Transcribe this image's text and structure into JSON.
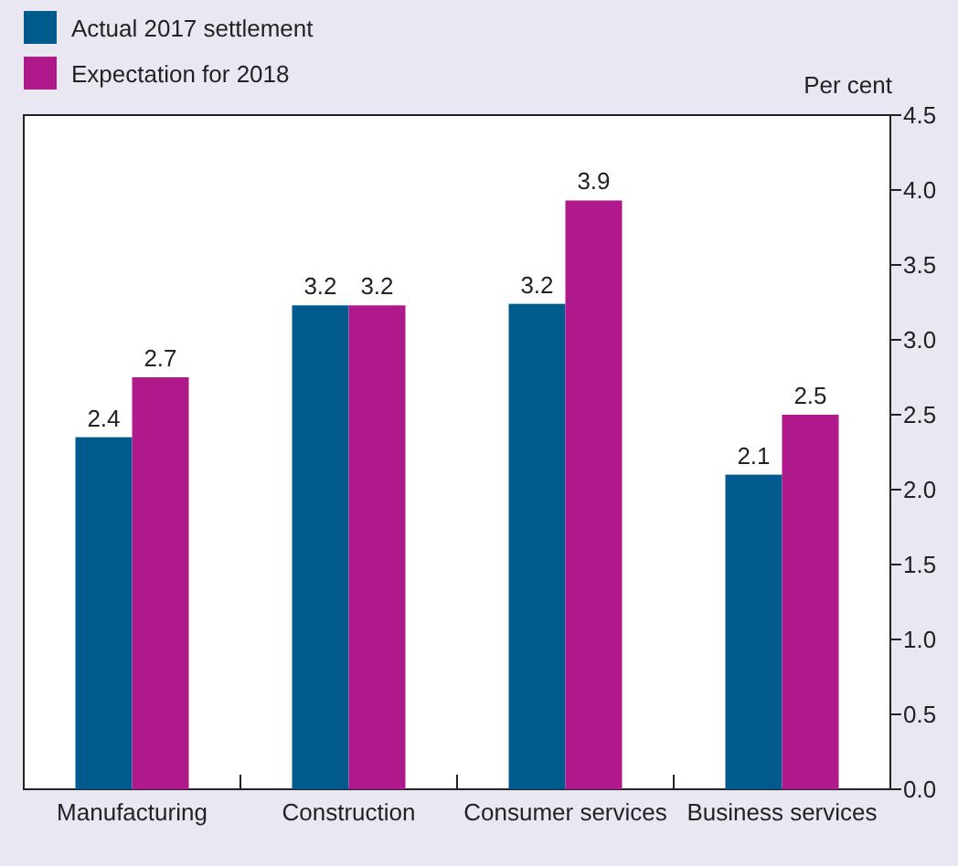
{
  "chart_data": {
    "type": "bar",
    "ylabel": "Per cent",
    "categories": [
      "Manufacturing",
      "Construction",
      "Consumer services",
      "Business services"
    ],
    "series": [
      {
        "name": "Actual 2017 settlement",
        "color": "#005a8c",
        "values": [
          2.35,
          3.23,
          3.24,
          2.1
        ],
        "value_labels": [
          "2.4",
          "3.2",
          "3.2",
          "2.1"
        ]
      },
      {
        "name": "Expectation for 2018",
        "color": "#b0198c",
        "values": [
          2.75,
          3.23,
          3.93,
          2.5
        ],
        "value_labels": [
          "2.7",
          "3.2",
          "3.9",
          "2.5"
        ]
      }
    ],
    "ylim": [
      0,
      4.5
    ],
    "yticks": [
      {
        "value": 0,
        "label": "0.0"
      },
      {
        "value": 0.5,
        "label": "0.5"
      },
      {
        "value": 1,
        "label": "1.0"
      },
      {
        "value": 1.5,
        "label": "1.5"
      },
      {
        "value": 2,
        "label": "2.0"
      },
      {
        "value": 2.5,
        "label": "2.5"
      },
      {
        "value": 3,
        "label": "3.0"
      },
      {
        "value": 3.5,
        "label": "3.5"
      },
      {
        "value": 4,
        "label": "4.0"
      },
      {
        "value": 4.5,
        "label": "4.5"
      }
    ],
    "grid": false,
    "legend": "top left"
  }
}
